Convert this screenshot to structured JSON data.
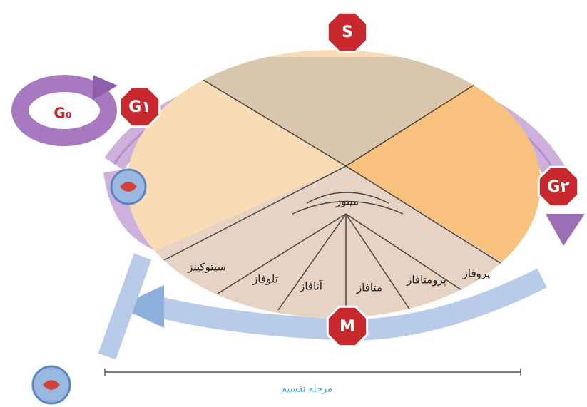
{
  "phases": {
    "s": "S",
    "g1": "G۱",
    "g2": "G۲",
    "g0": "G₀",
    "m": "M"
  },
  "mitosis": {
    "label": "میتوز",
    "stages": [
      "پروفاز",
      "پرومتافاز",
      "متافاز",
      "آنافاز",
      "تلوفاز"
    ]
  },
  "cytokinesis": "سیتوکینز",
  "division_phase": "مرحله تقسیم"
}
